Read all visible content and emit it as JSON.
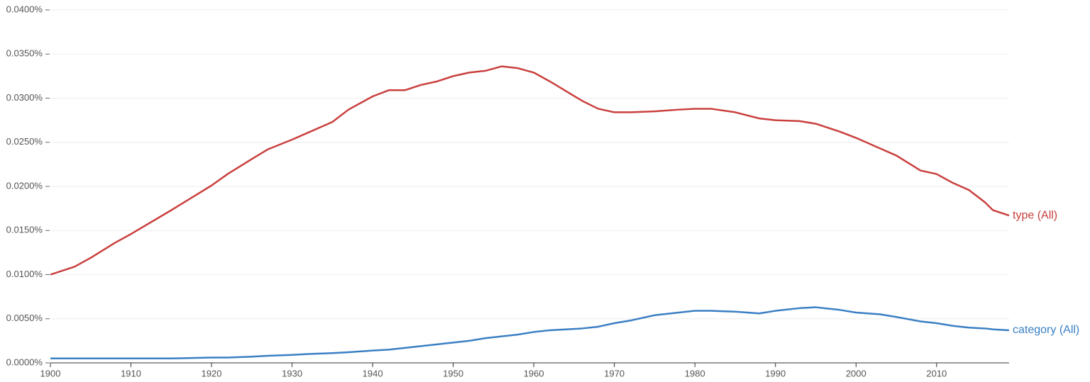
{
  "chart_data": {
    "type": "line",
    "x": [
      1900,
      1903,
      1905,
      1908,
      1910,
      1915,
      1920,
      1922,
      1925,
      1927,
      1930,
      1932,
      1935,
      1937,
      1940,
      1942,
      1944,
      1946,
      1948,
      1950,
      1952,
      1954,
      1956,
      1958,
      1960,
      1962,
      1964,
      1966,
      1968,
      1970,
      1972,
      1975,
      1978,
      1980,
      1982,
      1985,
      1988,
      1990,
      1993,
      1995,
      1998,
      2000,
      2003,
      2005,
      2008,
      2010,
      2012,
      2014,
      2016,
      2017,
      2019
    ],
    "series": [
      {
        "name": "type (All)",
        "color": "#c9403e",
        "values": [
          0.01,
          0.0109,
          0.0119,
          0.0136,
          0.0146,
          0.0173,
          0.0201,
          0.0214,
          0.0231,
          0.0242,
          0.0253,
          0.0261,
          0.0273,
          0.0287,
          0.0302,
          0.0309,
          0.0309,
          0.0315,
          0.0319,
          0.0325,
          0.0329,
          0.0331,
          0.0336,
          0.0334,
          0.0329,
          0.0319,
          0.0308,
          0.0297,
          0.0288,
          0.0284,
          0.0284,
          0.0285,
          0.0287,
          0.0288,
          0.0288,
          0.0284,
          0.0277,
          0.0275,
          0.0274,
          0.0271,
          0.0262,
          0.0255,
          0.0243,
          0.0235,
          0.0218,
          0.0214,
          0.0204,
          0.0196,
          0.0182,
          0.0173,
          0.0167
        ]
      },
      {
        "name": "category (All)",
        "color": "#3b7fc4",
        "values": [
          0.0005,
          0.0005,
          0.0005,
          0.0005,
          0.0005,
          0.0005,
          0.0006,
          0.0006,
          0.0007,
          0.0008,
          0.0009,
          0.001,
          0.0011,
          0.0012,
          0.0014,
          0.0015,
          0.0017,
          0.0019,
          0.0021,
          0.0023,
          0.0025,
          0.0028,
          0.003,
          0.0032,
          0.0035,
          0.0037,
          0.0038,
          0.0039,
          0.0041,
          0.0045,
          0.0048,
          0.0054,
          0.0057,
          0.0059,
          0.0059,
          0.0058,
          0.0056,
          0.0059,
          0.0062,
          0.0063,
          0.006,
          0.0057,
          0.0055,
          0.0052,
          0.0047,
          0.0045,
          0.0042,
          0.004,
          0.0039,
          0.0038,
          0.0037
        ]
      }
    ],
    "xlim": [
      1900,
      2019
    ],
    "xticks": [
      1900,
      1910,
      1920,
      1930,
      1940,
      1950,
      1960,
      1970,
      1980,
      1990,
      2000,
      2010
    ],
    "ylim": [
      0,
      0.04
    ],
    "yticks": [
      {
        "value": 0,
        "label": "0.0000%"
      },
      {
        "value": 0.005,
        "label": "0.0050%"
      },
      {
        "value": 0.01,
        "label": "0.0100%"
      },
      {
        "value": 0.015,
        "label": "0.0150%"
      },
      {
        "value": 0.02,
        "label": "0.0200%"
      },
      {
        "value": 0.025,
        "label": "0.0250%"
      },
      {
        "value": 0.03,
        "label": "0.0300%"
      },
      {
        "value": 0.035,
        "label": "0.0350%"
      },
      {
        "value": 0.04,
        "label": "0.0400%"
      }
    ],
    "grid": true
  }
}
